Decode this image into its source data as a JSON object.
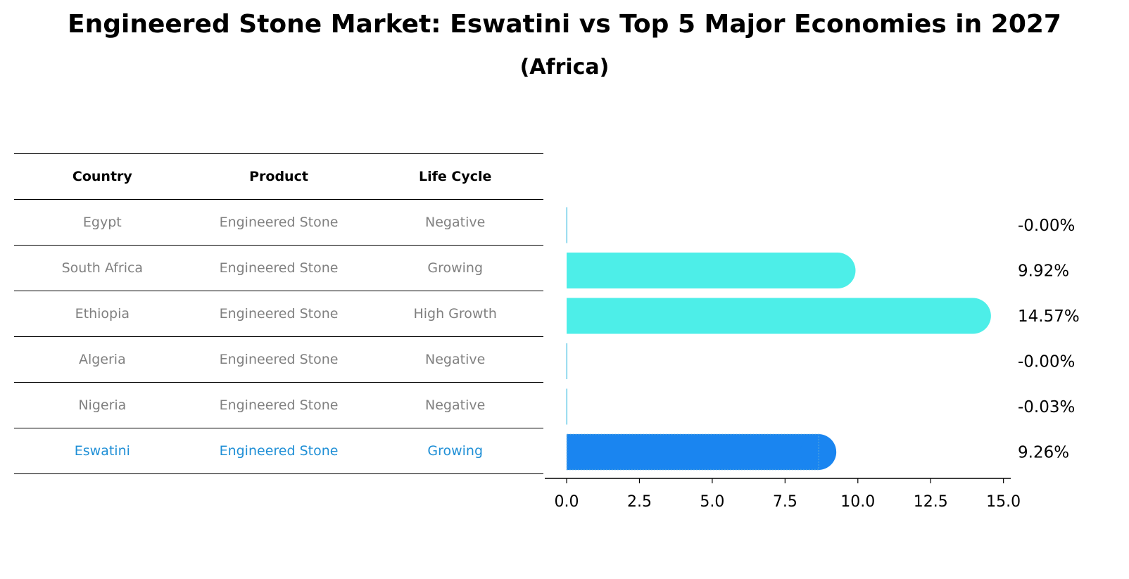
{
  "title": "Engineered Stone Market: Eswatini vs Top 5 Major Economies in 2027",
  "subtitle": "(Africa)",
  "table": {
    "headers": [
      "Country",
      "Product",
      "Life Cycle"
    ],
    "rows": [
      {
        "country": "Egypt",
        "product": "Engineered Stone",
        "life_cycle": "Negative"
      },
      {
        "country": "South Africa",
        "product": "Engineered Stone",
        "life_cycle": "Growing"
      },
      {
        "country": "Ethiopia",
        "product": "Engineered Stone",
        "life_cycle": "High Growth"
      },
      {
        "country": "Algeria",
        "product": "Engineered Stone",
        "life_cycle": "Negative"
      },
      {
        "country": "Nigeria",
        "product": "Engineered Stone",
        "life_cycle": "Negative"
      },
      {
        "country": "Eswatini",
        "product": "Engineered Stone",
        "life_cycle": "Growing"
      }
    ],
    "highlight_color": "#1f8fd6",
    "text_color": "#808080"
  },
  "chart_data": {
    "type": "bar",
    "orientation": "horizontal",
    "categories": [
      "Egypt",
      "South Africa",
      "Ethiopia",
      "Algeria",
      "Nigeria",
      "Eswatini"
    ],
    "values": [
      -0.0,
      9.92,
      14.57,
      -0.0,
      -0.03,
      9.26
    ],
    "value_labels": [
      "-0.00%",
      "9.92%",
      "14.57%",
      "-0.00%",
      "-0.03%",
      "9.26%"
    ],
    "xlim": [
      -0.75,
      15.25
    ],
    "xticks": [
      "0.0",
      "2.5",
      "5.0",
      "7.5",
      "10.0",
      "12.5",
      "15.0"
    ],
    "xtick_values": [
      0,
      2.5,
      5,
      7.5,
      10,
      12.5,
      15
    ],
    "colors": {
      "default": "#4deee8",
      "highlight": "#1a85f0",
      "zero_line": "#69cbe8"
    },
    "highlight_category": "Eswatini",
    "grid": false
  }
}
